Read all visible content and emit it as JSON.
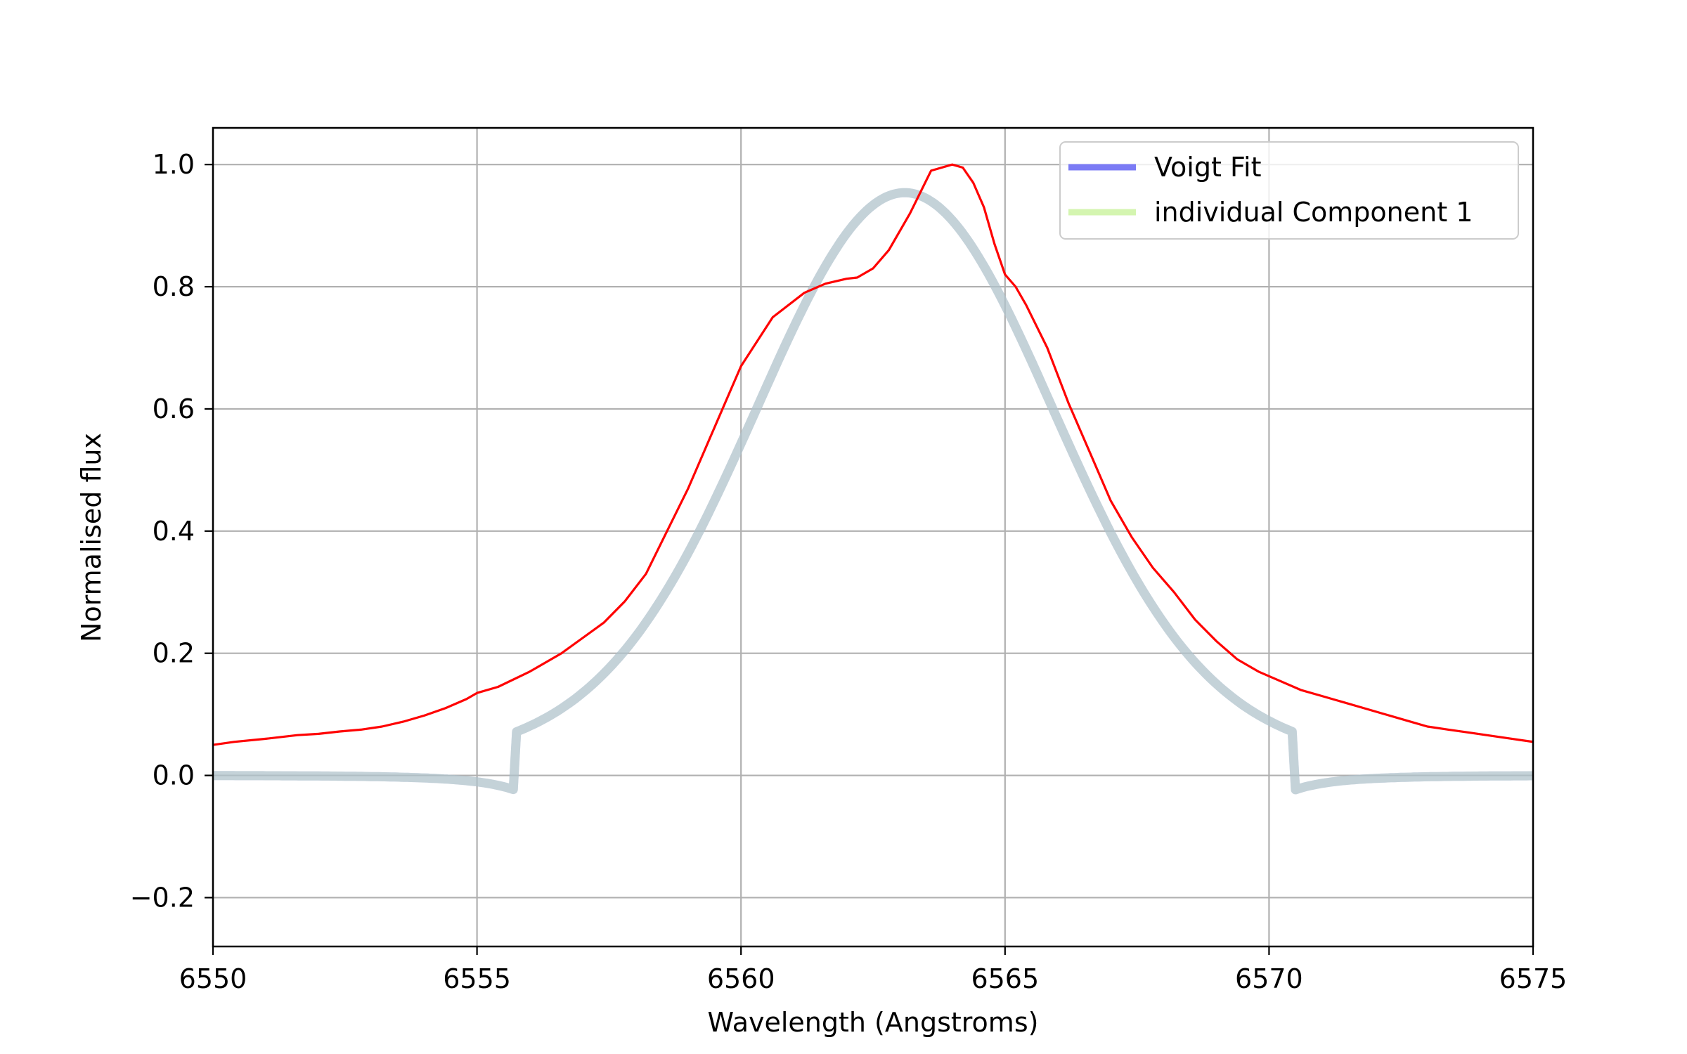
{
  "chart_data": {
    "type": "line",
    "title": "",
    "xlabel": "Wavelength (Angstroms)",
    "ylabel": "Normalised flux",
    "xlim": [
      6550,
      6575
    ],
    "ylim": [
      -0.28,
      1.06
    ],
    "xticks": [
      6550,
      6555,
      6560,
      6565,
      6570,
      6575
    ],
    "xtick_labels": [
      "6550",
      "6555",
      "6560",
      "6565",
      "6570",
      "6575"
    ],
    "yticks": [
      -0.2,
      0.0,
      0.2,
      0.4,
      0.6,
      0.8,
      1.0
    ],
    "ytick_labels": [
      "−0.2",
      "0.0",
      "0.2",
      "0.4",
      "0.6",
      "0.8",
      "1.0"
    ],
    "grid": true,
    "legend_position": "top-right",
    "legend": [
      {
        "label": "Voigt Fit",
        "color": "#7b7bf5"
      },
      {
        "label": "individual Component 1",
        "color": "#d4f5b0"
      }
    ],
    "series": [
      {
        "name": "Voigt Fit",
        "color": "#7b7bf5",
        "model": "voigt",
        "amplitude": 0.954,
        "center": 6563.1,
        "sigma": 2.55,
        "gamma": 0.8
      },
      {
        "name": "individual Component 1",
        "color": "#d4f5b0",
        "model": "voigt",
        "amplitude": 0.954,
        "center": 6563.1,
        "sigma": 2.55,
        "gamma": 0.8
      },
      {
        "color": "#ff0000",
        "x": [
          6550.0,
          6550.4,
          6551.0,
          6551.6,
          6552.0,
          6552.4,
          6552.8,
          6553.2,
          6553.6,
          6554.0,
          6554.4,
          6554.8,
          6555.0,
          6555.4,
          6556.0,
          6556.6,
          6557.0,
          6557.4,
          6557.8,
          6558.2,
          6558.6,
          6559.0,
          6559.4,
          6559.8,
          6560.0,
          6560.6,
          6561.2,
          6561.6,
          6562.0,
          6562.2,
          6562.5,
          6562.8,
          6563.2,
          6563.6,
          6564.0,
          6564.2,
          6564.4,
          6564.6,
          6564.8,
          6565.0,
          6565.2,
          6565.4,
          6565.8,
          6566.2,
          6566.6,
          6567.0,
          6567.4,
          6567.8,
          6568.2,
          6568.6,
          6569.0,
          6569.4,
          6569.8,
          6570.2,
          6570.6,
          6571.0,
          6571.4,
          6571.8,
          6572.2,
          6572.6,
          6573.0,
          6573.4,
          6573.8,
          6574.2,
          6574.6,
          6575.0
        ],
        "y": [
          0.05,
          0.055,
          0.06,
          0.066,
          0.068,
          0.072,
          0.075,
          0.08,
          0.088,
          0.098,
          0.11,
          0.125,
          0.135,
          0.145,
          0.17,
          0.2,
          0.225,
          0.25,
          0.285,
          0.33,
          0.4,
          0.47,
          0.55,
          0.63,
          0.67,
          0.75,
          0.79,
          0.805,
          0.813,
          0.815,
          0.83,
          0.86,
          0.92,
          0.99,
          1.0,
          0.995,
          0.97,
          0.93,
          0.87,
          0.82,
          0.8,
          0.77,
          0.7,
          0.61,
          0.53,
          0.45,
          0.39,
          0.34,
          0.3,
          0.255,
          0.22,
          0.19,
          0.17,
          0.155,
          0.14,
          0.13,
          0.12,
          0.11,
          0.1,
          0.09,
          0.08,
          0.075,
          0.07,
          0.065,
          0.06,
          0.055
        ]
      }
    ]
  }
}
